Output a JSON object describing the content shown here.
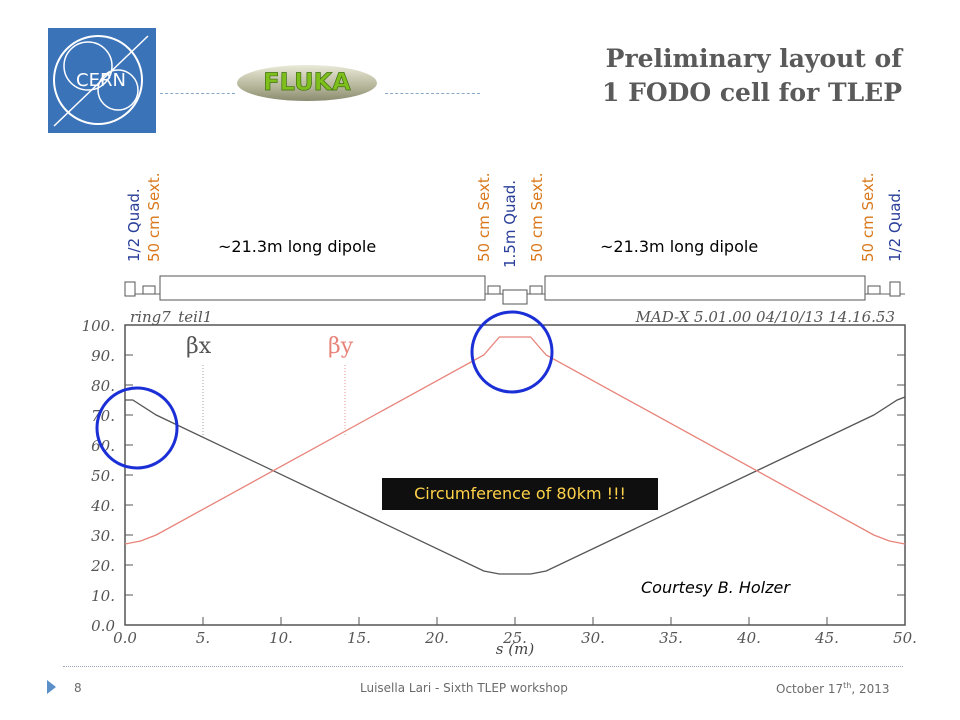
{
  "slide": {
    "title_line1": "Preliminary layout of",
    "title_line2": "1 FODO cell for TLEP",
    "logos": {
      "cern": "CERN",
      "fluka": "FLUKA"
    },
    "magnets": {
      "left_quad": "1/2 Quad.",
      "left_sext": "50 cm Sext.",
      "mid_sext_1": "50 cm Sext.",
      "mid_quad": "1.5m Quad.",
      "mid_sext_2": "50 cm Sext.",
      "right_sext": "50 cm Sext.",
      "right_quad": "1/2 Quad.",
      "dipole_left": "~21.3m long dipole",
      "dipole_right": "~21.3m long dipole"
    },
    "callout": "Circumference of 80km !!!",
    "courtesy": "Courtesy B. Holzer",
    "footer": {
      "page_number": "8",
      "center": "Luisella Lari - Sixth TLEP workshop",
      "date_main": "October 17",
      "date_sup": "th",
      "date_year": ", 2013"
    },
    "colors": {
      "title": "#5a5a5a",
      "orange": "#d9771a",
      "blue": "#2a3f9a",
      "beta_x": "#555555",
      "beta_y": "#e8837a",
      "circle": "#1b2fd6",
      "callout_bg": "#0f0f0f",
      "callout_text": "#ffd24a"
    }
  },
  "chart_data": {
    "type": "line",
    "header_left": "ring7_teil1",
    "header_right": "MAD-X 5.01.00  04/10/13 14.16.53",
    "xlabel": "s (m)",
    "ylabel": "",
    "xlim": [
      0,
      50
    ],
    "ylim": [
      0,
      100
    ],
    "x_ticks": [
      "0.0",
      "5.",
      "10.",
      "15.",
      "20.",
      "25.",
      "30.",
      "35.",
      "40.",
      "45.",
      "50."
    ],
    "y_ticks": [
      "0.0",
      "10.",
      "20.",
      "30.",
      "40.",
      "50.",
      "60.",
      "70.",
      "80.",
      "90.",
      "100."
    ],
    "series": [
      {
        "name": "βx",
        "color": "#555555",
        "x": [
          0,
          0.5,
          2,
          23,
          24,
          26,
          27,
          48,
          49.5,
          50
        ],
        "y": [
          75,
          75,
          70,
          18,
          17,
          17,
          18,
          70,
          75,
          76
        ]
      },
      {
        "name": "βy",
        "color": "#e8837a",
        "x": [
          0,
          1,
          2,
          23,
          24,
          26,
          27,
          48,
          49,
          50
        ],
        "y": [
          27,
          28,
          30,
          90,
          96,
          96,
          90,
          30,
          28,
          27
        ]
      }
    ]
  }
}
